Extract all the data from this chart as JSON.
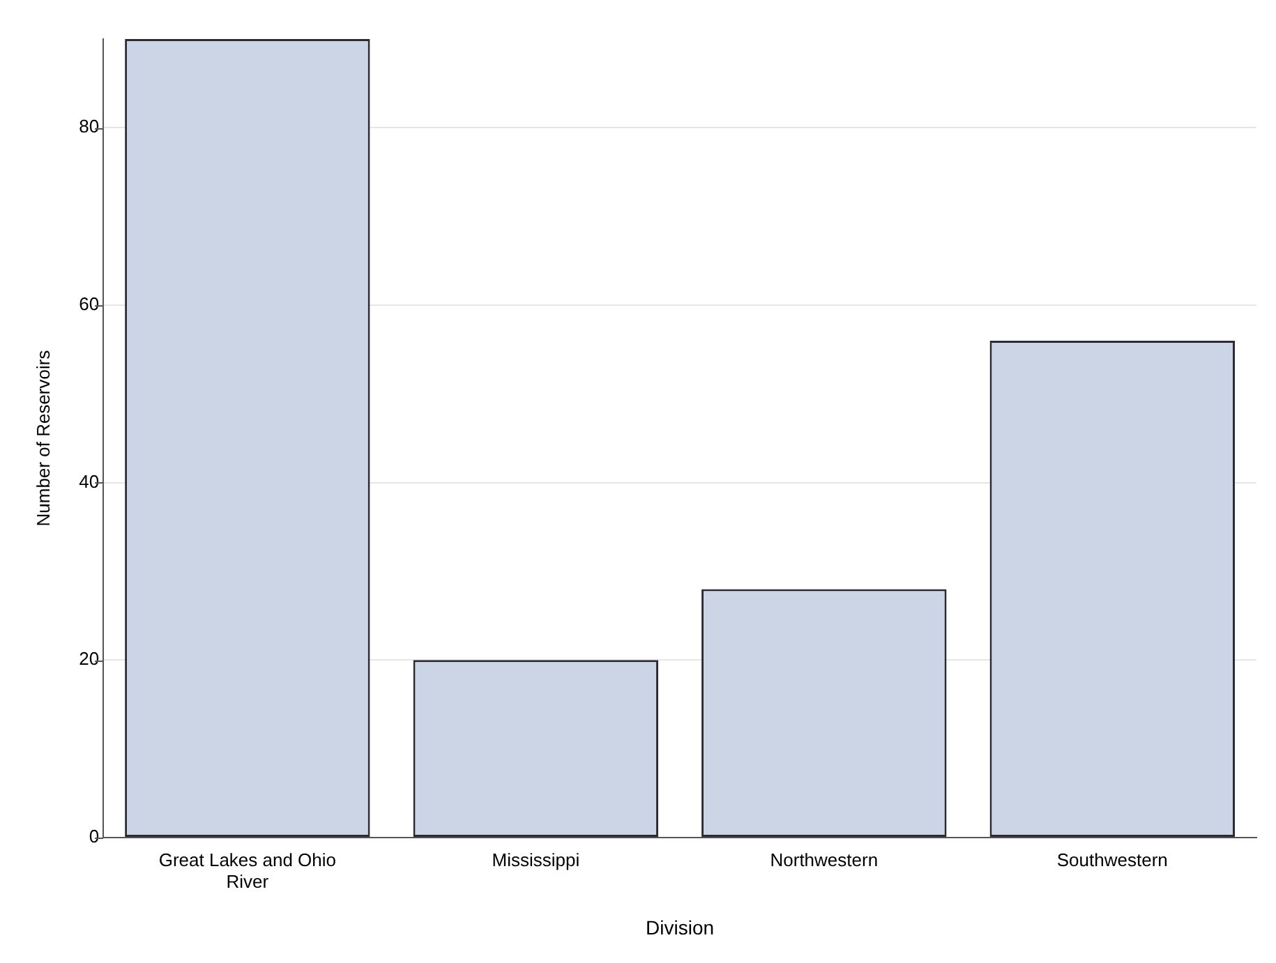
{
  "chart_data": {
    "type": "bar",
    "xlabel": "Division",
    "ylabel": "Number of Reservoirs",
    "categories": [
      "Great Lakes and Ohio River",
      "Mississippi",
      "Northwestern",
      "Southwestern"
    ],
    "values": [
      90,
      20,
      28,
      56
    ],
    "color": "#cbd5e5",
    "ylim": [
      0,
      90
    ],
    "yticks": [
      0,
      20,
      40,
      60,
      80
    ],
    "grid": "y",
    "legend": false
  }
}
